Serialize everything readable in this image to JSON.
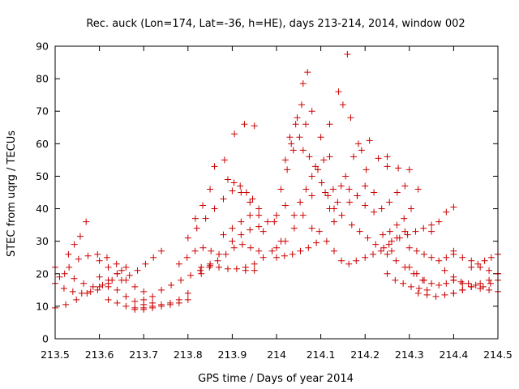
{
  "chart_data": {
    "type": "scatter",
    "title": "Rec. auck (Lon=174, Lat=-36, h=HE), days 213-214, 2014, window 002",
    "xlabel": "GPS time / Days of year 2014",
    "ylabel": "STEC from uqrg / TECUs",
    "xlim": [
      213.5,
      214.5
    ],
    "ylim": [
      0,
      90
    ],
    "xticks": [
      213.5,
      213.6,
      213.7,
      213.8,
      213.9,
      214,
      214.1,
      214.2,
      214.3,
      214.4,
      214.5
    ],
    "xtick_labels": [
      "213.5",
      "213.6",
      "213.7",
      "213.8",
      "213.9",
      "214",
      "214.1",
      "214.2",
      "214.3",
      "214.4",
      "214.5"
    ],
    "yticks": [
      0,
      10,
      20,
      30,
      40,
      50,
      60,
      70,
      80,
      90
    ],
    "ytick_labels": [
      "0",
      "10",
      "20",
      "30",
      "40",
      "50",
      "60",
      "70",
      "80",
      "90"
    ],
    "marker": "plus",
    "marker_color": "#cc0000",
    "grid": false,
    "legend": "none",
    "tracks": [
      {
        "x0": 213.5,
        "x1": 213.64,
        "y": [
          17.0,
          15.5,
          14.5,
          14.0,
          14.5,
          16.0,
          18.0,
          20.0
        ]
      },
      {
        "x0": 213.5,
        "x1": 213.65,
        "y": [
          22.0,
          20.0,
          18.5,
          17.0,
          16.0,
          16.5,
          18.0,
          21.0
        ]
      },
      {
        "x0": 213.5,
        "x1": 213.62,
        "y": [
          9.5,
          10.5,
          12.0,
          14.0,
          15.0,
          16.0
        ]
      },
      {
        "x0": 213.51,
        "x1": 213.66,
        "y": [
          19.0,
          22.0,
          24.5,
          25.5,
          26.0,
          25.0,
          23.0,
          22.0
        ]
      },
      {
        "x0": 213.53,
        "x1": 213.57,
        "y": [
          26.0,
          29.0,
          31.5,
          36.0
        ]
      },
      {
        "x0": 213.6,
        "x1": 213.7,
        "y": [
          19.0,
          17.0,
          15.0,
          13.0,
          11.5,
          10.5
        ]
      },
      {
        "x0": 213.6,
        "x1": 213.72,
        "y": [
          24.0,
          22.0,
          20.0,
          18.0,
          16.0,
          14.5,
          13.0
        ]
      },
      {
        "x0": 213.62,
        "x1": 213.72,
        "y": [
          12.0,
          11.0,
          10.0,
          9.5,
          9.5,
          10.0
        ]
      },
      {
        "x0": 213.65,
        "x1": 213.74,
        "y": [
          18.0,
          19.5,
          21.0,
          23.0,
          25.0,
          27.0
        ]
      },
      {
        "x0": 213.68,
        "x1": 213.8,
        "y": [
          9.0,
          9.0,
          9.5,
          10.0,
          10.5,
          11.0,
          12.0
        ]
      },
      {
        "x0": 213.7,
        "x1": 213.8,
        "y": [
          12.0,
          11.0,
          10.5,
          11.0,
          12.0,
          14.0
        ]
      },
      {
        "x0": 213.74,
        "x1": 213.85,
        "y": [
          15.0,
          16.5,
          18.0,
          19.5,
          21.0,
          23.0
        ]
      },
      {
        "x0": 213.78,
        "x1": 213.87,
        "y": [
          23.0,
          25.0,
          27.0,
          28.0,
          27.0,
          26.0
        ]
      },
      {
        "x0": 213.8,
        "x1": 213.85,
        "y": [
          31.0,
          37.0,
          41.0,
          46.0
        ]
      },
      {
        "x0": 213.82,
        "x1": 213.96,
        "y": [
          34.0,
          37.0,
          40.0,
          43.0,
          45.5,
          45.0,
          42.0,
          38.0
        ]
      },
      {
        "x0": 213.83,
        "x1": 213.95,
        "y": [
          22.0,
          22.5,
          22.0,
          21.5,
          21.5,
          21.0,
          21.0
        ]
      },
      {
        "x0": 213.83,
        "x1": 213.96,
        "y": [
          20.0,
          22.0,
          24.0,
          26.0,
          28.0,
          29.0,
          28.0,
          27.0
        ]
      },
      {
        "x0": 213.86,
        "x1": 213.95,
        "y": [
          53.0,
          55.0,
          63.0,
          66.0,
          65.5
        ]
      },
      {
        "x0": 213.88,
        "x1": 213.94,
        "y": [
          32.0,
          34.0,
          36.0,
          38.0
        ]
      },
      {
        "x0": 213.89,
        "x1": 213.96,
        "y": [
          49.0,
          48.0,
          47.0,
          45.0,
          43.0,
          40.0
        ]
      },
      {
        "x0": 213.9,
        "x1": 214.0,
        "y": [
          30.0,
          32.0,
          33.5,
          34.5,
          36.0,
          38.0
        ]
      },
      {
        "x0": 213.93,
        "x1": 214.01,
        "y": [
          22.0,
          23.0,
          25.0,
          27.0,
          30.0
        ]
      },
      {
        "x0": 213.97,
        "x1": 214.02,
        "y": [
          33.0,
          36.0,
          41.0
        ]
      },
      {
        "x0": 214.0,
        "x1": 214.09,
        "y": [
          25.0,
          25.5,
          26.0,
          27.0,
          28.0,
          29.5
        ]
      },
      {
        "x0": 214.0,
        "x1": 214.08,
        "y": [
          28.0,
          30.0,
          34.0,
          38.0,
          44.0
        ]
      },
      {
        "x0": 214.01,
        "x1": 214.08,
        "y": [
          46.0,
          52.0,
          58.0,
          62.0,
          66.0,
          70.0
        ]
      },
      {
        "x0": 214.02,
        "x1": 214.06,
        "y": [
          55.0,
          60.0,
          68.0,
          78.5
        ]
      },
      {
        "x0": 214.03,
        "x1": 214.07,
        "y": [
          62.0,
          66.0,
          72.0,
          82.0
        ]
      },
      {
        "x0": 214.04,
        "x1": 214.12,
        "y": [
          38.0,
          42.0,
          46.0,
          50.0,
          52.0,
          55.0,
          56.0
        ]
      },
      {
        "x0": 214.06,
        "x1": 214.13,
        "y": [
          58.0,
          56.0,
          53.0,
          48.0,
          44.0,
          40.0
        ]
      },
      {
        "x0": 214.08,
        "x1": 214.18,
        "y": [
          34.0,
          33.0,
          30.0,
          27.0,
          24.0,
          23.0,
          24.0
        ]
      },
      {
        "x0": 214.1,
        "x1": 214.16,
        "y": [
          62.0,
          66.0,
          76.0,
          87.5
        ]
      },
      {
        "x0": 214.11,
        "x1": 214.2,
        "y": [
          45.0,
          46.0,
          47.0,
          46.0,
          44.0,
          41.0
        ]
      },
      {
        "x0": 214.12,
        "x1": 214.21,
        "y": [
          40.0,
          42.0,
          50.0,
          56.0,
          58.0,
          61.0
        ]
      },
      {
        "x0": 214.13,
        "x1": 214.2,
        "y": [
          36.0,
          38.0,
          42.0,
          44.0,
          47.0
        ]
      },
      {
        "x0": 214.15,
        "x1": 214.22,
        "y": [
          72.0,
          68.0,
          60.0,
          52.0,
          45.0
        ]
      },
      {
        "x0": 214.17,
        "x1": 214.26,
        "y": [
          35.0,
          33.0,
          31.0,
          29.0,
          28.0,
          27.0
        ]
      },
      {
        "x0": 214.2,
        "x1": 214.29,
        "y": [
          25.0,
          26.0,
          27.0,
          29.0,
          31.0,
          33.0
        ]
      },
      {
        "x0": 214.22,
        "x1": 214.29,
        "y": [
          39.0,
          40.0,
          42.0,
          45.0,
          47.0
        ]
      },
      {
        "x0": 214.23,
        "x1": 214.25,
        "y": [
          55.5,
          56.0
        ]
      },
      {
        "x0": 214.24,
        "x1": 214.32,
        "y": [
          32.0,
          33.0,
          35.0,
          37.0,
          40.0,
          46.0
        ]
      },
      {
        "x0": 214.25,
        "x1": 214.3,
        "y": [
          53.0,
          52.5,
          52.0
        ]
      },
      {
        "x0": 214.25,
        "x1": 214.34,
        "y": [
          20.0,
          18.0,
          17.0,
          16.0,
          15.5,
          15.0
        ]
      },
      {
        "x0": 214.25,
        "x1": 214.33,
        "y": [
          26.0,
          24.0,
          22.0,
          20.0,
          18.0
        ]
      },
      {
        "x0": 214.26,
        "x1": 214.35,
        "y": [
          30.0,
          31.0,
          32.0,
          33.0,
          34.0,
          35.0
        ]
      },
      {
        "x0": 214.3,
        "x1": 214.4,
        "y": [
          28.0,
          27.0,
          26.0,
          25.0,
          24.0,
          25.0,
          27.0
        ]
      },
      {
        "x0": 214.3,
        "x1": 214.4,
        "y": [
          22.0,
          20.0,
          18.0,
          17.0,
          16.5,
          17.0,
          18.0
        ]
      },
      {
        "x0": 214.32,
        "x1": 214.42,
        "y": [
          14.0,
          13.5,
          13.0,
          13.5,
          14.0,
          15.0
        ]
      },
      {
        "x0": 214.35,
        "x1": 214.4,
        "y": [
          33.0,
          36.0,
          39.0,
          40.5
        ]
      },
      {
        "x0": 214.38,
        "x1": 214.5,
        "y": [
          21.0,
          19.0,
          17.0,
          16.0,
          15.5,
          15.0,
          14.5
        ]
      },
      {
        "x0": 214.4,
        "x1": 214.5,
        "y": [
          26.0,
          25.0,
          24.0,
          22.0,
          21.0,
          20.0
        ]
      },
      {
        "x0": 214.4,
        "x1": 214.5,
        "y": [
          18.0,
          17.5,
          17.0,
          16.5,
          16.0,
          17.0,
          18.0
        ]
      },
      {
        "x0": 214.4,
        "x1": 214.5,
        "y": [
          14.0,
          15.0,
          16.0,
          17.0,
          18.0,
          20.0
        ]
      },
      {
        "x0": 214.44,
        "x1": 214.5,
        "y": [
          22.0,
          23.0,
          24.0,
          25.0,
          26.0
        ]
      }
    ]
  }
}
